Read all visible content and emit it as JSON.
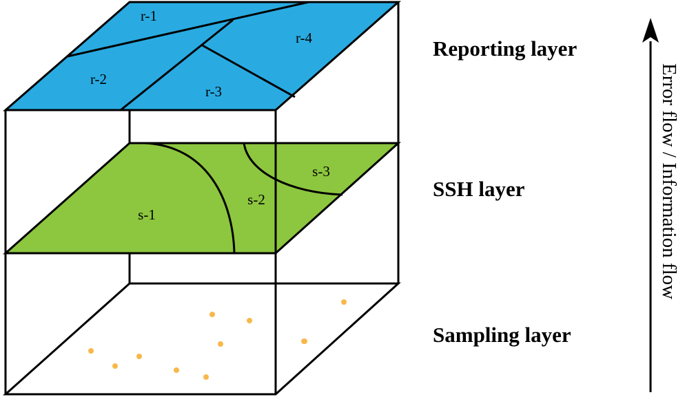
{
  "colors": {
    "reporting_fill": "#29abe2",
    "ssh_fill": "#8dc63f",
    "sample_point": "#f7b84b",
    "line": "#000000"
  },
  "layers": {
    "reporting": {
      "label": "Reporting layer",
      "regions": [
        "r-1",
        "r-2",
        "r-3",
        "r-4"
      ]
    },
    "ssh": {
      "label": "SSH layer",
      "regions": [
        "s-1",
        "s-2",
        "s-3"
      ]
    },
    "sampling": {
      "label": "Sampling layer",
      "point_count": 11
    }
  },
  "flow_arrow": {
    "label": "Error flow / Information flow",
    "direction": "up"
  }
}
